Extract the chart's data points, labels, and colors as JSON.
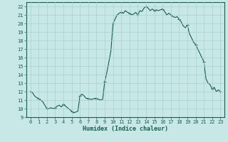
{
  "xlabel": "Humidex (Indice chaleur)",
  "ylabel": "",
  "bg_color": "#c8e8e8",
  "grid_color": "#aacfcf",
  "line_color": "#1a5c4a",
  "xlim": [
    -0.5,
    23.5
  ],
  "ylim": [
    9,
    22.5
  ],
  "yticks": [
    9,
    10,
    11,
    12,
    13,
    14,
    15,
    16,
    17,
    18,
    19,
    20,
    21,
    22
  ],
  "xticks": [
    0,
    1,
    2,
    3,
    4,
    5,
    6,
    7,
    8,
    9,
    10,
    11,
    12,
    13,
    14,
    15,
    16,
    17,
    18,
    19,
    20,
    21,
    22,
    23
  ],
  "x": [
    0.0,
    0.25,
    0.5,
    0.75,
    1.0,
    1.25,
    1.5,
    1.75,
    2.0,
    2.25,
    2.5,
    2.75,
    3.0,
    3.25,
    3.5,
    3.75,
    4.0,
    4.25,
    4.5,
    4.75,
    5.0,
    5.25,
    5.5,
    5.75,
    6.0,
    6.25,
    6.5,
    6.75,
    7.0,
    7.25,
    7.5,
    7.75,
    8.0,
    8.25,
    8.5,
    8.75,
    9.0,
    9.25,
    9.5,
    9.75,
    10.0,
    10.25,
    10.5,
    10.75,
    11.0,
    11.25,
    11.5,
    11.75,
    12.0,
    12.25,
    12.5,
    12.75,
    13.0,
    13.25,
    13.5,
    13.75,
    14.0,
    14.25,
    14.5,
    14.75,
    15.0,
    15.25,
    15.5,
    15.75,
    16.0,
    16.25,
    16.5,
    16.75,
    17.0,
    17.25,
    17.5,
    17.75,
    18.0,
    18.25,
    18.5,
    18.75,
    19.0,
    19.25,
    19.5,
    19.75,
    20.0,
    20.25,
    20.5,
    20.75,
    21.0,
    21.25,
    21.5,
    21.75,
    22.0,
    22.25,
    22.5,
    22.75,
    23.0
  ],
  "y": [
    12.0,
    11.9,
    11.5,
    11.3,
    11.2,
    11.0,
    10.8,
    10.4,
    10.0,
    10.0,
    10.1,
    10.0,
    10.1,
    10.3,
    10.4,
    10.2,
    10.5,
    10.3,
    10.1,
    9.9,
    9.7,
    9.5,
    9.6,
    9.7,
    11.5,
    11.7,
    11.5,
    11.2,
    11.2,
    11.1,
    11.1,
    11.2,
    11.2,
    11.1,
    11.0,
    11.1,
    13.2,
    14.2,
    15.5,
    16.8,
    20.0,
    20.5,
    21.0,
    21.2,
    21.3,
    21.2,
    21.5,
    21.3,
    21.2,
    21.0,
    21.1,
    21.3,
    21.0,
    21.5,
    21.4,
    21.8,
    22.0,
    21.8,
    21.5,
    21.7,
    21.5,
    21.6,
    21.5,
    21.6,
    21.7,
    21.4,
    21.0,
    21.2,
    21.0,
    20.8,
    20.7,
    20.8,
    20.5,
    20.2,
    19.7,
    19.5,
    19.8,
    18.8,
    18.3,
    17.8,
    17.5,
    17.0,
    16.5,
    16.0,
    15.5,
    13.5,
    13.0,
    12.8,
    12.3,
    12.5,
    12.0,
    12.2,
    12.0
  ]
}
